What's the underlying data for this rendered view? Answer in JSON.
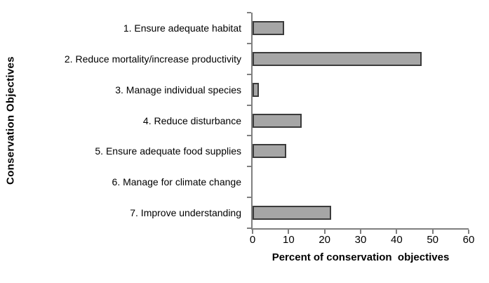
{
  "chart_data": {
    "type": "bar",
    "orientation": "horizontal",
    "title": "",
    "categories": [
      "1. Ensure adequate habitat",
      "2. Reduce mortality/increase productivity",
      "3. Manage individual species",
      "4. Reduce disturbance",
      "5. Ensure adequate food supplies",
      "6. Manage for climate change",
      "7. Improve understanding"
    ],
    "values": [
      8.8,
      47,
      1.7,
      13.7,
      9.3,
      0,
      21.8
    ],
    "xlabel": "Percent of conservation  objectives",
    "ylabel": "Conservation Objectives",
    "xlim": [
      0,
      60
    ],
    "x_ticks": [
      0,
      10,
      20,
      30,
      40,
      50,
      60
    ],
    "grid": false,
    "legend": false,
    "colors": {
      "bar_fill": "#a6a6a6",
      "bar_border": "#3b3b3b",
      "axis": "#7f7f7f",
      "text": "#000000",
      "background": "#ffffff"
    }
  }
}
